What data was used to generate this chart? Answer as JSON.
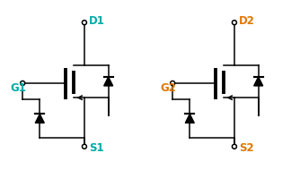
{
  "bg_color": "#ffffff",
  "line_color": "#000000",
  "label_color_1": "#00aaaa",
  "label_color_2": "#e07800",
  "label_G1": "G1",
  "label_D1": "D1",
  "label_S1": "S1",
  "label_G2": "G2",
  "label_D2": "D2",
  "label_S2": "S2",
  "font_size": 8.5,
  "fig_width": 3.34,
  "fig_height": 1.9,
  "dpi": 100
}
